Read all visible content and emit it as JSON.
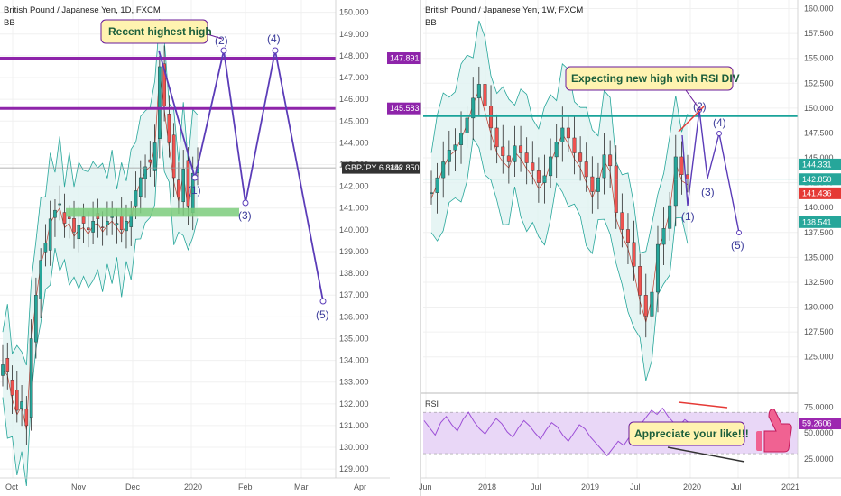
{
  "colors": {
    "up": "#26a69a",
    "down": "#ef5350",
    "candle": "#2b2b2b",
    "wave": "#5b3cb8",
    "resistance": "#8e24aa",
    "support_zone": "#7ccd7c",
    "weekly_line": "#1aa39a",
    "band": "#b2dfdb",
    "callout_fill": "#fff3b0",
    "red_arrow": "#e53935",
    "rsi_band": "#e9d7f7",
    "rsi_line": "#9c4fd6",
    "thumb": "#f06292"
  },
  "chart_data": [
    {
      "type": "candlestick",
      "title": "British Pound / Japanese Yen, 1D, FXCM",
      "indicator": "BB",
      "x_ticks": [
        "Oct",
        "Nov",
        "Dec",
        "2020",
        "Feb",
        "Mar",
        "Apr"
      ],
      "y_ticks": [
        "150.000",
        "149.000",
        "148.000",
        "147.000",
        "146.000",
        "145.000",
        "144.000",
        "143.000",
        "142.000",
        "141.000",
        "140.000",
        "139.000",
        "138.000",
        "137.000",
        "136.000",
        "135.000",
        "134.000",
        "133.000",
        "132.000",
        "131.000",
        "130.000",
        "129.000"
      ],
      "ylim": [
        128.8,
        150.4
      ],
      "grid": true,
      "price_series": [
        133.8,
        133.5,
        132.4,
        131.7,
        132.1,
        131.0,
        135.0,
        137.0,
        138.6,
        139.4,
        140.5,
        140.9,
        141.2,
        140.3,
        140.5,
        139.9,
        140.2,
        140.3,
        140.0,
        140.4,
        140.5,
        140.1,
        140.4,
        140.6,
        140.3,
        140.0,
        140.4,
        140.7,
        141.8,
        142.4,
        142.9,
        143.1,
        144.0,
        147.5,
        145.7,
        144.0,
        142.4,
        141.5,
        142.8,
        141.1,
        142.6,
        142.9
      ],
      "resistance_levels": [
        {
          "label": "147.891",
          "value": 147.891
        },
        {
          "label": "145.583",
          "value": 145.583
        }
      ],
      "support_zone": {
        "low": 140.6,
        "high": 141.0
      },
      "current_price": {
        "label": "GBPJPY 6.84%",
        "value_label": "142.850",
        "value": 142.85
      },
      "wave_labels": [
        "(1)",
        "(2)",
        "(3)",
        "(4)",
        "(5)"
      ],
      "callout": "Recent highest high"
    },
    {
      "type": "candlestick",
      "title": "British Pound / Japanese Yen, 1W, FXCM",
      "indicator": "BB",
      "x_ticks": [
        "Jun",
        "2018",
        "Jul",
        "2019",
        "Jul",
        "2020",
        "Jul",
        "2021"
      ],
      "y_ticks": [
        "160.000",
        "157.500",
        "155.000",
        "152.500",
        "150.000",
        "147.500",
        "145.000",
        "142.500",
        "140.000",
        "137.500",
        "135.000",
        "132.500",
        "130.000",
        "127.500",
        "125.000"
      ],
      "ylim": [
        122.8,
        160.5
      ],
      "grid": true,
      "price_series": [
        141.5,
        143.0,
        144.6,
        145.8,
        146.3,
        147.5,
        149.0,
        151.0,
        152.4,
        150.2,
        148.0,
        146.1,
        145.2,
        144.6,
        146.2,
        145.5,
        144.5,
        143.7,
        142.5,
        143.2,
        145.1,
        146.6,
        148.0,
        147.0,
        145.5,
        144.6,
        143.1,
        141.6,
        143.0,
        145.3,
        144.2,
        139.5,
        137.8,
        136.5,
        134.1,
        131.2,
        129.1,
        131.5,
        136.3,
        137.9,
        140.2,
        145.1,
        143.3,
        142.9
      ],
      "horizontal_line": 149.2,
      "price_labels": [
        {
          "label": "144.331",
          "value": 144.331
        },
        {
          "label": "142.850",
          "value": 142.85
        },
        {
          "label": "141.436",
          "value": 141.436
        },
        {
          "label": "138.541",
          "value": 138.541
        }
      ],
      "wave_labels": [
        "(1)",
        "(2)",
        "(3)",
        "(4)",
        "(5)"
      ],
      "callout": "Expecting new high with RSI DIV",
      "rsi": {
        "label": "RSI",
        "y_ticks": [
          "75.0000",
          "50.0000",
          "25.0000"
        ],
        "ylim": [
          10,
          85
        ],
        "band": [
          30,
          70
        ],
        "current_label": "59.2606",
        "current_value": 59.2606,
        "values": [
          62,
          55,
          48,
          60,
          66,
          58,
          52,
          63,
          70,
          61,
          54,
          49,
          57,
          64,
          59,
          51,
          46,
          55,
          62,
          57,
          50,
          44,
          53,
          60,
          56,
          48,
          42,
          50,
          58,
          54,
          46,
          40,
          34,
          28,
          35,
          42,
          38,
          46,
          52,
          58,
          65,
          72,
          68,
          74,
          66,
          60,
          57,
          63,
          59
        ]
      },
      "annotation": "Appreciate your like!!!"
    }
  ]
}
